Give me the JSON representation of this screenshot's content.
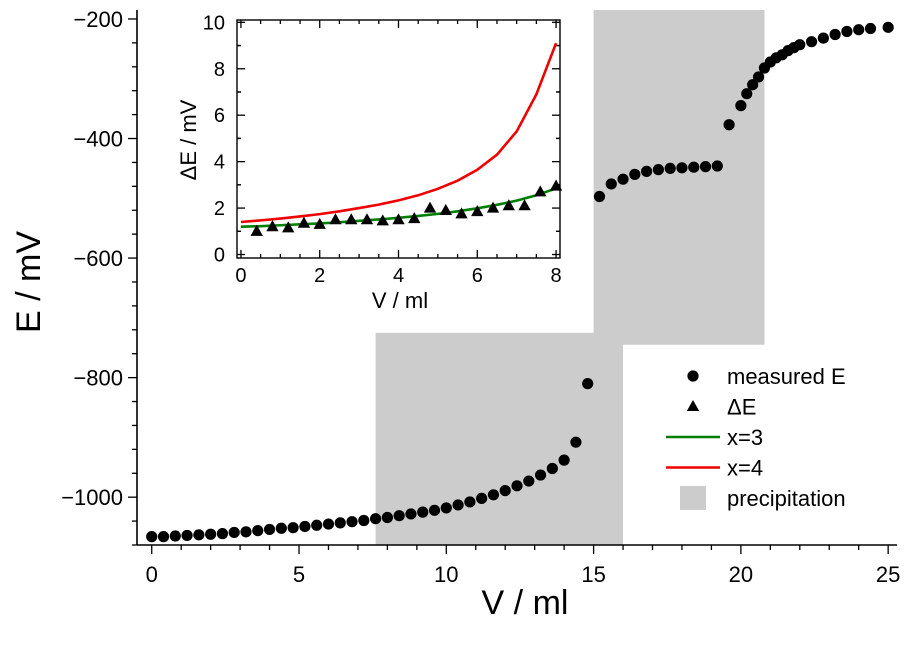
{
  "chart_data": {
    "main": {
      "type": "scatter",
      "xlabel": "V / ml",
      "ylabel": "E / mV",
      "xlim": [
        -0.5,
        25.3
      ],
      "ylim": [
        -1080,
        -185
      ],
      "xticks": [
        0,
        5,
        10,
        15,
        20,
        25
      ],
      "xtick_labels": [
        "0",
        "5",
        "10",
        "15",
        "20",
        "25"
      ],
      "xminor_step": 1,
      "yticks": [
        -1000,
        -800,
        -600,
        -400,
        -200
      ],
      "ytick_labels": [
        "−1000",
        "−800",
        "−600",
        "−400",
        "−200"
      ],
      "yminor_step": 40,
      "series": [
        {
          "name": "measured E",
          "marker": "circle",
          "color": "#000000",
          "x": [
            0,
            0.4,
            0.8,
            1.2,
            1.6,
            2,
            2.4,
            2.8,
            3.2,
            3.6,
            4,
            4.4,
            4.8,
            5.2,
            5.6,
            6,
            6.4,
            6.8,
            7.2,
            7.6,
            8,
            8.4,
            8.8,
            9.2,
            9.6,
            10,
            10.4,
            10.8,
            11.2,
            11.6,
            12,
            12.4,
            12.8,
            13.2,
            13.6,
            14,
            14.4,
            14.8,
            15.2,
            15.6,
            16,
            16.4,
            16.8,
            17.2,
            17.6,
            18,
            18.4,
            18.8,
            19.2,
            19.6,
            20,
            20.2,
            20.4,
            20.6,
            20.8,
            21,
            21.2,
            21.4,
            21.6,
            21.8,
            22,
            22.4,
            22.8,
            23.2,
            23.6,
            24,
            24.4,
            25
          ],
          "y": [
            -1066,
            -1066,
            -1065,
            -1064,
            -1063,
            -1062,
            -1061,
            -1059,
            -1058,
            -1056,
            -1054,
            -1052,
            -1051,
            -1049,
            -1047,
            -1045,
            -1043,
            -1041,
            -1039,
            -1036,
            -1034,
            -1031,
            -1028,
            -1025,
            -1022,
            -1018,
            -1013,
            -1008,
            -1002,
            -996,
            -989,
            -981,
            -973,
            -963,
            -952,
            -938,
            -908,
            -810,
            -497,
            -476,
            -468,
            -460,
            -455,
            -452,
            -450,
            -449,
            -448,
            -447,
            -446,
            -377,
            -345,
            -325,
            -310,
            -297,
            -282,
            -272,
            -265,
            -260,
            -253,
            -248,
            -243,
            -238,
            -232,
            -226,
            -221,
            -218,
            -216,
            -214
          ]
        }
      ],
      "regions": [
        {
          "name": "precipitation",
          "color": "#cccccc",
          "x": [
            7.6,
            16
          ],
          "y": [
            -1080,
            -725
          ]
        },
        {
          "name": "precipitation",
          "color": "#cccccc",
          "x": [
            15,
            20.8
          ],
          "y": [
            -745,
            -185
          ]
        }
      ]
    },
    "inset": {
      "type": "scatter+line",
      "xlabel": "V / ml",
      "ylabel": "ΔE / mV",
      "xlim": [
        -0.1,
        8.1
      ],
      "ylim": [
        -0.15,
        10.1
      ],
      "xticks": [
        0,
        2,
        4,
        6,
        8
      ],
      "xtick_labels": [
        "0",
        "2",
        "4",
        "6",
        "8"
      ],
      "yticks": [
        0,
        2,
        4,
        6,
        8,
        10
      ],
      "ytick_labels": [
        "0",
        "2",
        "4",
        "6",
        "8",
        "10"
      ],
      "minor_step": 0.5,
      "series": [
        {
          "name": "ΔE",
          "marker": "triangle",
          "color": "#000000",
          "x": [
            0.4,
            0.8,
            1.2,
            1.6,
            2.0,
            2.4,
            2.8,
            3.2,
            3.6,
            4.0,
            4.4,
            4.8,
            5.2,
            5.6,
            6.0,
            6.4,
            6.8,
            7.2,
            7.6,
            8.0
          ],
          "y": [
            1.0,
            1.2,
            1.15,
            1.35,
            1.3,
            1.5,
            1.5,
            1.5,
            1.45,
            1.5,
            1.55,
            2.0,
            1.9,
            1.75,
            1.85,
            2.0,
            2.1,
            2.1,
            2.7,
            2.95
          ]
        },
        {
          "name": "x=3",
          "marker": "line",
          "color": "#008000",
          "x": [
            0,
            0.5,
            1,
            1.5,
            2,
            2.5,
            3,
            3.5,
            4,
            4.5,
            5,
            5.5,
            6,
            6.5,
            7,
            7.5,
            8
          ],
          "y": [
            1.2,
            1.22,
            1.26,
            1.3,
            1.34,
            1.39,
            1.45,
            1.51,
            1.58,
            1.66,
            1.75,
            1.86,
            1.99,
            2.14,
            2.32,
            2.55,
            2.85
          ]
        },
        {
          "name": "x=4",
          "marker": "line",
          "color": "#ee0000",
          "x": [
            0,
            0.5,
            1,
            1.5,
            2,
            2.5,
            3,
            3.5,
            4,
            4.5,
            5,
            5.5,
            6,
            6.5,
            7,
            7.5,
            8
          ],
          "y": [
            1.4,
            1.47,
            1.55,
            1.64,
            1.74,
            1.86,
            2.0,
            2.15,
            2.33,
            2.55,
            2.83,
            3.18,
            3.65,
            4.3,
            5.3,
            6.9,
            9.1
          ]
        }
      ]
    },
    "legend": {
      "position": "bottom-right",
      "items": [
        {
          "label": "measured E",
          "kind": "circle",
          "color": "#000000"
        },
        {
          "label": "ΔE",
          "kind": "triangle",
          "color": "#000000"
        },
        {
          "label": "x=3",
          "kind": "line",
          "color": "#008000"
        },
        {
          "label": "x=4",
          "kind": "line",
          "color": "#ee0000"
        },
        {
          "label": "precipitation",
          "kind": "box",
          "color": "#cccccc"
        }
      ]
    }
  }
}
